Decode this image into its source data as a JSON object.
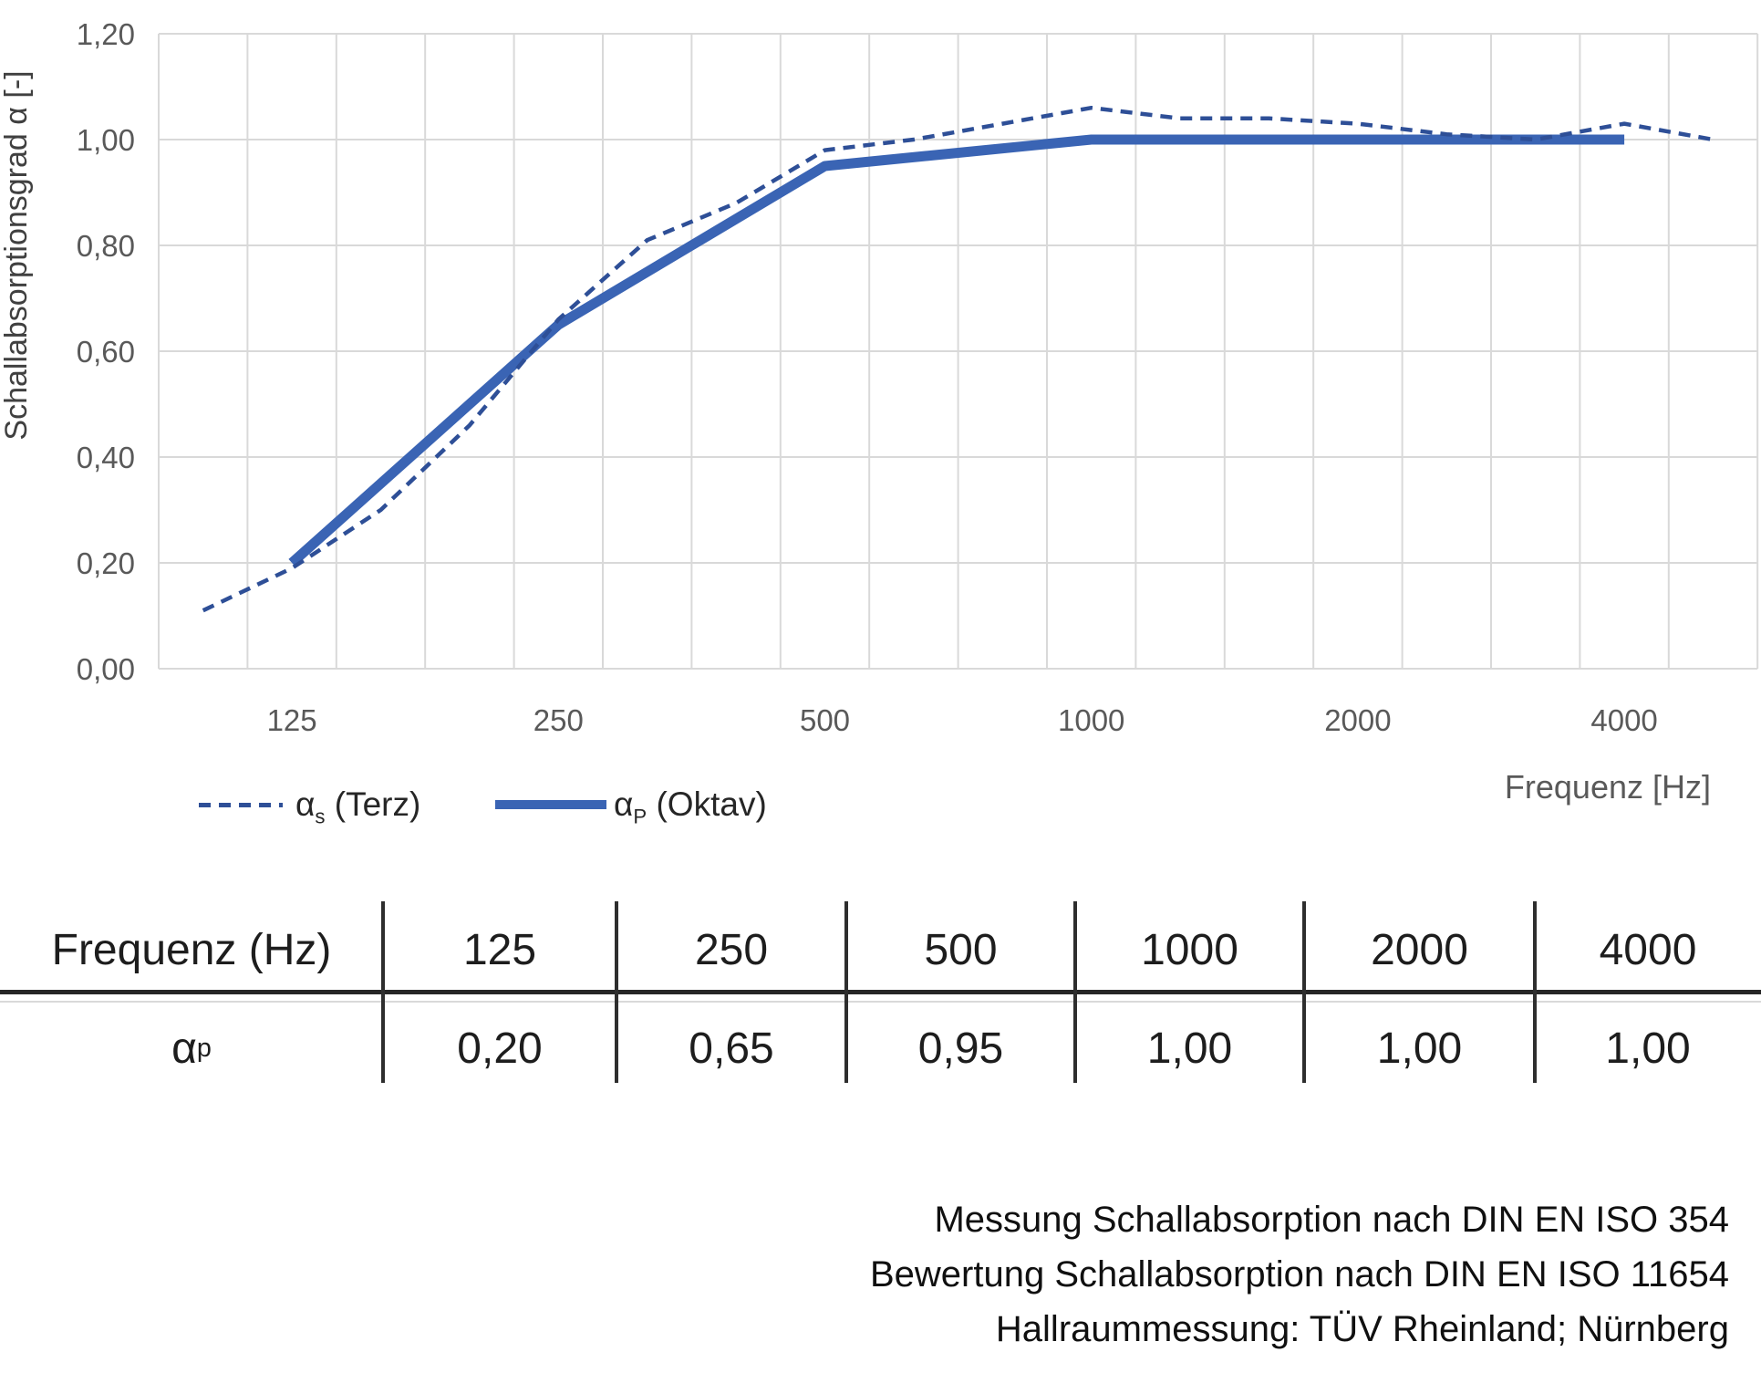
{
  "chart": {
    "y_axis_title": "Schallabsorptionsgrad α [-]",
    "x_axis_title": "Frequenz [Hz]",
    "y_tick_labels": [
      "0,00",
      "0,20",
      "0,40",
      "0,60",
      "0,80",
      "1,00",
      "1,20"
    ],
    "x_tick_labels": [
      "125",
      "250",
      "500",
      "1000",
      "2000",
      "4000"
    ],
    "colors": {
      "grid": "#D9D9D9",
      "axis_text": "#595959",
      "terz_line": "#2E4F97",
      "oktav_line": "#3A64B4"
    }
  },
  "chart_data": {
    "type": "line",
    "title": "",
    "xlabel": "Frequenz [Hz]",
    "ylabel": "Schallabsorptionsgrad α [-]",
    "x_scale": "categorical third-octave bands (log spacing)",
    "categories": [
      100,
      125,
      160,
      200,
      250,
      315,
      400,
      500,
      630,
      800,
      1000,
      1250,
      1600,
      2000,
      2500,
      3150,
      4000,
      5000
    ],
    "xticks_shown": [
      125,
      250,
      500,
      1000,
      2000,
      4000
    ],
    "ylim": [
      0,
      1.2
    ],
    "ytick_step": 0.2,
    "grid": true,
    "legend_position": "bottom-left",
    "series": [
      {
        "name": "αs (Terz)",
        "style": "dashed",
        "color": "#2E4F97",
        "categories": [
          100,
          125,
          160,
          200,
          250,
          315,
          400,
          500,
          630,
          800,
          1000,
          1250,
          1600,
          2000,
          2500,
          3150,
          4000,
          5000
        ],
        "values": [
          0.11,
          0.19,
          0.3,
          0.46,
          0.66,
          0.81,
          0.88,
          0.98,
          1.0,
          1.03,
          1.06,
          1.04,
          1.04,
          1.03,
          1.01,
          1.0,
          1.03,
          1.0
        ]
      },
      {
        "name": "αP (Oktav)",
        "style": "solid",
        "color": "#3A64B4",
        "categories": [
          125,
          250,
          500,
          1000,
          2000,
          4000
        ],
        "values": [
          0.2,
          0.65,
          0.95,
          1.0,
          1.0,
          1.0
        ]
      }
    ]
  },
  "legend": {
    "terz": {
      "alpha": "α",
      "sub": "s",
      "rest": " (Terz)"
    },
    "oktav": {
      "alpha": "α",
      "sub": "P",
      "rest": " (Oktav)"
    }
  },
  "table": {
    "header_label": "Frequenz (Hz)",
    "frequencies": [
      "125",
      "250",
      "500",
      "1000",
      "2000",
      "4000"
    ],
    "row_label": {
      "alpha": "α",
      "sub": "p"
    },
    "values": [
      "0,20",
      "0,65",
      "0,95",
      "1,00",
      "1,00",
      "1,00"
    ]
  },
  "notes": {
    "lines": [
      "Messung Schallabsorption nach DIN EN ISO 354",
      "Bewertung Schallabsorption nach DIN EN ISO 11654",
      "Hallraummessung: TÜV Rheinland; Nürnberg"
    ]
  }
}
